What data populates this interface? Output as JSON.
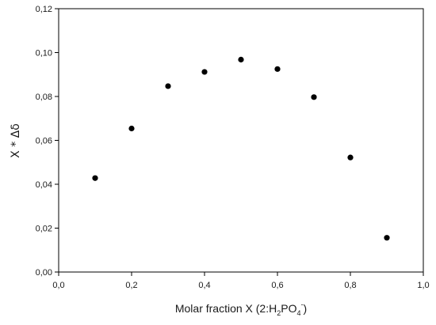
{
  "chart_data": {
    "type": "scatter",
    "title": "",
    "xlabel": "Molar fraction X  (2:H",
    "xlabel_sub": "2",
    "xlabel_mid": "PO",
    "xlabel_sub2": "4",
    "xlabel_sup": "-",
    "xlabel_end": ")",
    "ylabel": "X * Δδ",
    "xlim": [
      0.0,
      1.0
    ],
    "ylim": [
      0.0,
      0.12
    ],
    "xticks": [
      0.0,
      0.2,
      0.4,
      0.6,
      0.8,
      1.0
    ],
    "xtick_labels": [
      "0,0",
      "0,2",
      "0,4",
      "0,6",
      "0,8",
      "1,0"
    ],
    "yticks": [
      0.0,
      0.02,
      0.04,
      0.06,
      0.08,
      0.1,
      0.12
    ],
    "ytick_labels": [
      "0,00",
      "0,02",
      "0,04",
      "0,06",
      "0,08",
      "0,10",
      "0,12"
    ],
    "grid": false,
    "marker_color": "#000000",
    "points": [
      {
        "x": 0.1,
        "y": 0.0428
      },
      {
        "x": 0.2,
        "y": 0.0654
      },
      {
        "x": 0.3,
        "y": 0.0847
      },
      {
        "x": 0.4,
        "y": 0.0912
      },
      {
        "x": 0.5,
        "y": 0.0968
      },
      {
        "x": 0.6,
        "y": 0.0925
      },
      {
        "x": 0.7,
        "y": 0.0797
      },
      {
        "x": 0.8,
        "y": 0.0522
      },
      {
        "x": 0.9,
        "y": 0.0156
      }
    ]
  }
}
